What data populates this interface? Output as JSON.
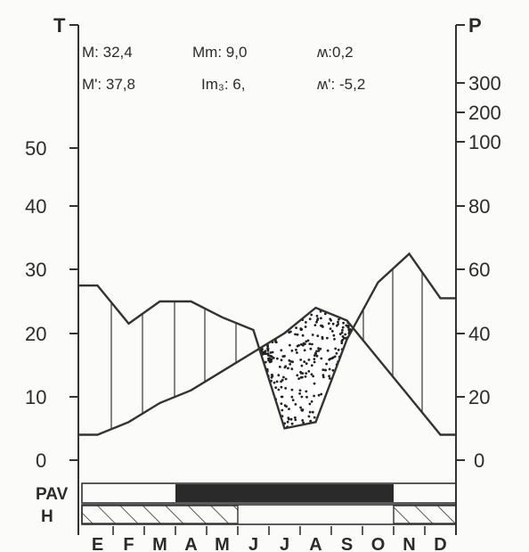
{
  "chart_data": {
    "type": "line",
    "title": "",
    "categories": [
      "E",
      "F",
      "M",
      "A",
      "M",
      "J",
      "J",
      "A",
      "S",
      "O",
      "N",
      "D"
    ],
    "left_axis": {
      "label": "T",
      "ticks": [
        "0",
        "10",
        "20",
        "30",
        "40",
        "50"
      ],
      "ylim": [
        0,
        55
      ]
    },
    "right_axis": {
      "label": "P",
      "ticks": [
        "0",
        "20",
        "40",
        "60",
        "80",
        "100",
        "200",
        "300"
      ]
    },
    "series": [
      {
        "values": [
          4,
          6,
          9,
          11,
          14,
          17,
          20,
          24,
          22,
          16,
          10,
          4
        ]
      },
      {
        "values": [
          27.5,
          21.5,
          25,
          25,
          22.5,
          20.5,
          5,
          6,
          19,
          28,
          32.5,
          25.5
        ]
      }
    ],
    "stats": [
      {
        "label": "M",
        "value": ": 32,4"
      },
      {
        "label": "M'",
        "value": ": 37,8"
      },
      {
        "label": "Mm",
        "value": ": 9,0"
      },
      {
        "label": "Im₃",
        "value": ": 6,"
      },
      {
        "label": "ʍ",
        "value": ":0,2"
      },
      {
        "label": "ʍ'",
        "value": ": -5,2"
      }
    ],
    "bars": [
      {
        "label": "PAV",
        "filled_months": [
          "A",
          "M",
          "J",
          "J",
          "A",
          "S",
          "O"
        ]
      },
      {
        "label": "H",
        "hatched_months": [
          "E",
          "F",
          "M",
          "A",
          "M",
          "N",
          "D"
        ]
      }
    ],
    "grid": false,
    "legend": "none"
  }
}
